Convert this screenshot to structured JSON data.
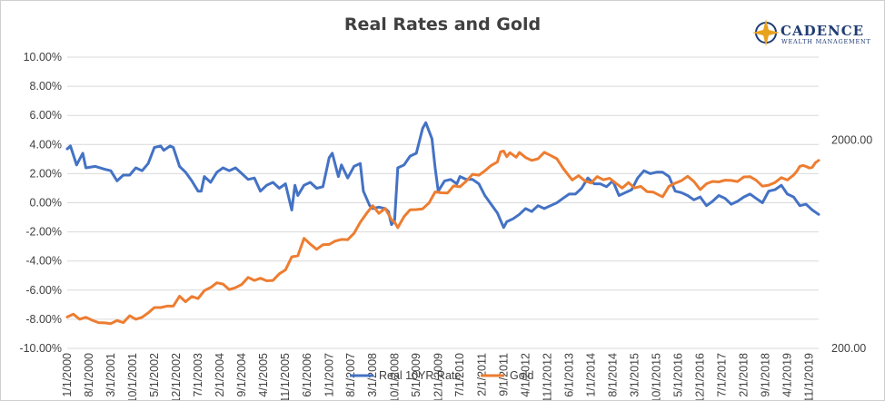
{
  "chart_data": {
    "type": "line",
    "title": "Real Rates and Gold",
    "logo": {
      "name": "CADENCE",
      "sub": "WEALTH MANAGEMENT"
    },
    "y_left": {
      "ticks": [
        "10.00%",
        "8.00%",
        "6.00%",
        "4.00%",
        "2.00%",
        "0.00%",
        "-2.00%",
        "-4.00%",
        "-6.00%",
        "-8.00%",
        "-10.00%"
      ],
      "ylim": [
        -10,
        10
      ]
    },
    "y_right": {
      "scale": "log",
      "ticks": [
        "2000.00",
        "200.00"
      ],
      "ylim": [
        200,
        5000
      ]
    },
    "x_ticks": [
      "1/1/2000",
      "8/1/2000",
      "3/1/2001",
      "10/1/2001",
      "5/1/2002",
      "12/1/2002",
      "7/1/2003",
      "2/1/2004",
      "9/1/2004",
      "4/1/2005",
      "11/1/2005",
      "6/1/2006",
      "1/1/2007",
      "8/1/2007",
      "3/1/2008",
      "10/1/2008",
      "5/1/2009",
      "12/1/2009",
      "7/1/2010",
      "2/1/2011",
      "9/1/2011",
      "4/1/2012",
      "11/1/2012",
      "6/1/2013",
      "1/1/2014",
      "8/1/2014",
      "3/1/2015",
      "10/1/2015",
      "5/1/2016",
      "12/1/2016",
      "7/1/2017",
      "2/1/2018",
      "9/1/2018",
      "4/1/2019",
      "11/1/2019"
    ],
    "x_range": [
      "2000-01-01",
      "2020-02-01"
    ],
    "grid": "horizontal",
    "legend": "bottom",
    "series": [
      {
        "name": "Real 10YR Rate",
        "axis": "left",
        "color": "#4472c4",
        "points": [
          [
            "2000-01-01",
            3.7
          ],
          [
            "2000-02-01",
            3.9
          ],
          [
            "2000-04-01",
            2.6
          ],
          [
            "2000-06-01",
            3.4
          ],
          [
            "2000-07-01",
            2.4
          ],
          [
            "2000-10-01",
            2.5
          ],
          [
            "2001-01-01",
            2.3
          ],
          [
            "2001-03-01",
            2.2
          ],
          [
            "2001-05-01",
            1.5
          ],
          [
            "2001-07-01",
            1.9
          ],
          [
            "2001-09-01",
            1.9
          ],
          [
            "2001-11-01",
            2.4
          ],
          [
            "2002-01-01",
            2.2
          ],
          [
            "2002-03-01",
            2.7
          ],
          [
            "2002-05-01",
            3.8
          ],
          [
            "2002-07-01",
            3.9
          ],
          [
            "2002-08-01",
            3.6
          ],
          [
            "2002-10-01",
            3.9
          ],
          [
            "2002-11-01",
            3.8
          ],
          [
            "2003-01-01",
            2.5
          ],
          [
            "2003-03-01",
            2.1
          ],
          [
            "2003-05-01",
            1.5
          ],
          [
            "2003-07-01",
            0.8
          ],
          [
            "2003-08-01",
            0.8
          ],
          [
            "2003-09-01",
            1.8
          ],
          [
            "2003-11-01",
            1.4
          ],
          [
            "2004-01-01",
            2.1
          ],
          [
            "2004-03-01",
            2.4
          ],
          [
            "2004-05-01",
            2.2
          ],
          [
            "2004-07-01",
            2.4
          ],
          [
            "2004-09-01",
            2.0
          ],
          [
            "2004-11-01",
            1.6
          ],
          [
            "2005-01-01",
            1.7
          ],
          [
            "2005-03-01",
            0.8
          ],
          [
            "2005-05-01",
            1.2
          ],
          [
            "2005-07-01",
            1.4
          ],
          [
            "2005-09-01",
            1.0
          ],
          [
            "2005-11-01",
            1.3
          ],
          [
            "2006-01-01",
            -0.5
          ],
          [
            "2006-02-01",
            1.2
          ],
          [
            "2006-03-01",
            0.5
          ],
          [
            "2006-05-01",
            1.2
          ],
          [
            "2006-07-01",
            1.4
          ],
          [
            "2006-09-01",
            1.0
          ],
          [
            "2006-11-01",
            1.1
          ],
          [
            "2007-01-01",
            3.1
          ],
          [
            "2007-02-01",
            3.4
          ],
          [
            "2007-04-01",
            1.8
          ],
          [
            "2007-05-01",
            2.6
          ],
          [
            "2007-07-01",
            1.7
          ],
          [
            "2007-09-01",
            2.5
          ],
          [
            "2007-11-01",
            2.7
          ],
          [
            "2007-12-01",
            0.8
          ],
          [
            "2008-02-01",
            -0.2
          ],
          [
            "2008-03-01",
            -0.4
          ],
          [
            "2008-05-01",
            -0.3
          ],
          [
            "2008-07-01",
            -0.4
          ],
          [
            "2008-08-01",
            -0.6
          ],
          [
            "2008-09-01",
            -1.5
          ],
          [
            "2008-10-01",
            -1.2
          ],
          [
            "2008-11-01",
            2.4
          ],
          [
            "2009-01-01",
            2.6
          ],
          [
            "2009-03-01",
            3.2
          ],
          [
            "2009-05-01",
            3.4
          ],
          [
            "2009-07-01",
            5.1
          ],
          [
            "2009-08-01",
            5.5
          ],
          [
            "2009-10-01",
            4.4
          ],
          [
            "2009-11-01",
            2.4
          ],
          [
            "2009-12-01",
            0.8
          ],
          [
            "2010-02-01",
            1.5
          ],
          [
            "2010-04-01",
            1.6
          ],
          [
            "2010-06-01",
            1.3
          ],
          [
            "2010-07-01",
            1.8
          ],
          [
            "2010-09-01",
            1.6
          ],
          [
            "2010-11-01",
            1.6
          ],
          [
            "2011-01-01",
            1.3
          ],
          [
            "2011-03-01",
            0.5
          ],
          [
            "2011-05-01",
            -0.1
          ],
          [
            "2011-07-01",
            -0.7
          ],
          [
            "2011-09-01",
            -1.7
          ],
          [
            "2011-10-01",
            -1.3
          ],
          [
            "2011-12-01",
            -1.1
          ],
          [
            "2012-02-01",
            -0.8
          ],
          [
            "2012-04-01",
            -0.4
          ],
          [
            "2012-06-01",
            -0.6
          ],
          [
            "2012-08-01",
            -0.2
          ],
          [
            "2012-10-01",
            -0.4
          ],
          [
            "2012-12-01",
            -0.2
          ],
          [
            "2013-02-01",
            0.0
          ],
          [
            "2013-04-01",
            0.3
          ],
          [
            "2013-06-01",
            0.6
          ],
          [
            "2013-08-01",
            0.6
          ],
          [
            "2013-10-01",
            1.0
          ],
          [
            "2013-12-01",
            1.7
          ],
          [
            "2014-02-01",
            1.3
          ],
          [
            "2014-04-01",
            1.3
          ],
          [
            "2014-06-01",
            1.1
          ],
          [
            "2014-08-01",
            1.5
          ],
          [
            "2014-10-01",
            0.5
          ],
          [
            "2014-12-01",
            0.7
          ],
          [
            "2015-02-01",
            0.9
          ],
          [
            "2015-04-01",
            1.7
          ],
          [
            "2015-06-01",
            2.2
          ],
          [
            "2015-08-01",
            2.0
          ],
          [
            "2015-10-01",
            2.1
          ],
          [
            "2015-12-01",
            2.1
          ],
          [
            "2016-02-01",
            1.8
          ],
          [
            "2016-04-01",
            0.8
          ],
          [
            "2016-06-01",
            0.7
          ],
          [
            "2016-08-01",
            0.5
          ],
          [
            "2016-10-01",
            0.2
          ],
          [
            "2016-12-01",
            0.4
          ],
          [
            "2017-02-01",
            -0.2
          ],
          [
            "2017-04-01",
            0.1
          ],
          [
            "2017-06-01",
            0.5
          ],
          [
            "2017-08-01",
            0.3
          ],
          [
            "2017-10-01",
            -0.1
          ],
          [
            "2017-12-01",
            0.1
          ],
          [
            "2018-02-01",
            0.4
          ],
          [
            "2018-04-01",
            0.6
          ],
          [
            "2018-06-01",
            0.3
          ],
          [
            "2018-08-01",
            0.0
          ],
          [
            "2018-10-01",
            0.8
          ],
          [
            "2018-12-01",
            0.9
          ],
          [
            "2019-02-01",
            1.2
          ],
          [
            "2019-04-01",
            0.6
          ],
          [
            "2019-06-01",
            0.4
          ],
          [
            "2019-08-01",
            -0.2
          ],
          [
            "2019-10-01",
            -0.1
          ],
          [
            "2019-12-01",
            -0.5
          ],
          [
            "2020-02-01",
            -0.8
          ]
        ]
      },
      {
        "name": "Gold",
        "axis": "right",
        "color": "#ed7d31",
        "points": [
          [
            "2000-01-01",
            283
          ],
          [
            "2000-03-01",
            292
          ],
          [
            "2000-05-01",
            276
          ],
          [
            "2000-07-01",
            282
          ],
          [
            "2000-09-01",
            273
          ],
          [
            "2000-11-01",
            266
          ],
          [
            "2001-01-01",
            265
          ],
          [
            "2001-03-01",
            263
          ],
          [
            "2001-05-01",
            272
          ],
          [
            "2001-07-01",
            266
          ],
          [
            "2001-09-01",
            287
          ],
          [
            "2001-11-01",
            276
          ],
          [
            "2002-01-01",
            282
          ],
          [
            "2002-03-01",
            296
          ],
          [
            "2002-05-01",
            314
          ],
          [
            "2002-07-01",
            314
          ],
          [
            "2002-09-01",
            319
          ],
          [
            "2002-11-01",
            319
          ],
          [
            "2003-01-01",
            356
          ],
          [
            "2003-03-01",
            335
          ],
          [
            "2003-05-01",
            355
          ],
          [
            "2003-07-01",
            347
          ],
          [
            "2003-09-01",
            379
          ],
          [
            "2003-11-01",
            392
          ],
          [
            "2004-01-01",
            413
          ],
          [
            "2004-03-01",
            407
          ],
          [
            "2004-05-01",
            383
          ],
          [
            "2004-07-01",
            391
          ],
          [
            "2004-09-01",
            406
          ],
          [
            "2004-11-01",
            438
          ],
          [
            "2005-01-01",
            424
          ],
          [
            "2005-03-01",
            434
          ],
          [
            "2005-05-01",
            422
          ],
          [
            "2005-07-01",
            424
          ],
          [
            "2005-09-01",
            456
          ],
          [
            "2005-11-01",
            476
          ],
          [
            "2006-01-01",
            550
          ],
          [
            "2006-03-01",
            557
          ],
          [
            "2006-05-01",
            675
          ],
          [
            "2006-07-01",
            633
          ],
          [
            "2006-09-01",
            598
          ],
          [
            "2006-11-01",
            629
          ],
          [
            "2007-01-01",
            631
          ],
          [
            "2007-03-01",
            655
          ],
          [
            "2007-05-01",
            667
          ],
          [
            "2007-07-01",
            665
          ],
          [
            "2007-09-01",
            713
          ],
          [
            "2007-11-01",
            806
          ],
          [
            "2008-01-01",
            889
          ],
          [
            "2008-03-01",
            968
          ],
          [
            "2008-05-01",
            889
          ],
          [
            "2008-07-01",
            940
          ],
          [
            "2008-09-01",
            829
          ],
          [
            "2008-10-01",
            807
          ],
          [
            "2008-11-01",
            760
          ],
          [
            "2009-01-01",
            858
          ],
          [
            "2009-03-01",
            925
          ],
          [
            "2009-05-01",
            928
          ],
          [
            "2009-07-01",
            935
          ],
          [
            "2009-09-01",
            997
          ],
          [
            "2009-11-01",
            1128
          ],
          [
            "2010-01-01",
            1117
          ],
          [
            "2010-03-01",
            1113
          ],
          [
            "2010-05-01",
            1205
          ],
          [
            "2010-07-01",
            1193
          ],
          [
            "2010-09-01",
            1271
          ],
          [
            "2010-11-01",
            1370
          ],
          [
            "2011-01-01",
            1356
          ],
          [
            "2011-03-01",
            1424
          ],
          [
            "2011-05-01",
            1510
          ],
          [
            "2011-07-01",
            1571
          ],
          [
            "2011-08-01",
            1757
          ],
          [
            "2011-09-01",
            1771
          ],
          [
            "2011-10-01",
            1665
          ],
          [
            "2011-11-01",
            1739
          ],
          [
            "2012-01-01",
            1654
          ],
          [
            "2012-02-01",
            1742
          ],
          [
            "2012-04-01",
            1650
          ],
          [
            "2012-06-01",
            1598
          ],
          [
            "2012-08-01",
            1626
          ],
          [
            "2012-10-01",
            1747
          ],
          [
            "2012-12-01",
            1688
          ],
          [
            "2013-02-01",
            1627
          ],
          [
            "2013-04-01",
            1468
          ],
          [
            "2013-06-01",
            1342
          ],
          [
            "2013-07-01",
            1286
          ],
          [
            "2013-09-01",
            1349
          ],
          [
            "2013-11-01",
            1275
          ],
          [
            "2014-01-01",
            1244
          ],
          [
            "2014-03-01",
            1336
          ],
          [
            "2014-05-01",
            1289
          ],
          [
            "2014-07-01",
            1311
          ],
          [
            "2014-09-01",
            1241
          ],
          [
            "2014-11-01",
            1176
          ],
          [
            "2015-01-01",
            1251
          ],
          [
            "2015-03-01",
            1178
          ],
          [
            "2015-05-01",
            1199
          ],
          [
            "2015-07-01",
            1131
          ],
          [
            "2015-09-01",
            1124
          ],
          [
            "2015-11-01",
            1086
          ],
          [
            "2015-12-01",
            1068
          ],
          [
            "2016-02-01",
            1200
          ],
          [
            "2016-04-01",
            1242
          ],
          [
            "2016-06-01",
            1276
          ],
          [
            "2016-08-01",
            1340
          ],
          [
            "2016-10-01",
            1266
          ],
          [
            "2016-12-01",
            1157
          ],
          [
            "2017-02-01",
            1234
          ],
          [
            "2017-04-01",
            1266
          ],
          [
            "2017-06-01",
            1260
          ],
          [
            "2017-08-01",
            1283
          ],
          [
            "2017-10-01",
            1280
          ],
          [
            "2017-12-01",
            1264
          ],
          [
            "2018-02-01",
            1331
          ],
          [
            "2018-04-01",
            1335
          ],
          [
            "2018-06-01",
            1282
          ],
          [
            "2018-08-01",
            1202
          ],
          [
            "2018-10-01",
            1215
          ],
          [
            "2018-12-01",
            1250
          ],
          [
            "2019-02-01",
            1320
          ],
          [
            "2019-04-01",
            1286
          ],
          [
            "2019-06-01",
            1359
          ],
          [
            "2019-07-01",
            1414
          ],
          [
            "2019-08-01",
            1497
          ],
          [
            "2019-09-01",
            1510
          ],
          [
            "2019-10-01",
            1495
          ],
          [
            "2019-11-01",
            1470
          ],
          [
            "2019-12-01",
            1480
          ],
          [
            "2020-01-01",
            1560
          ],
          [
            "2020-02-01",
            1597
          ]
        ]
      }
    ]
  }
}
